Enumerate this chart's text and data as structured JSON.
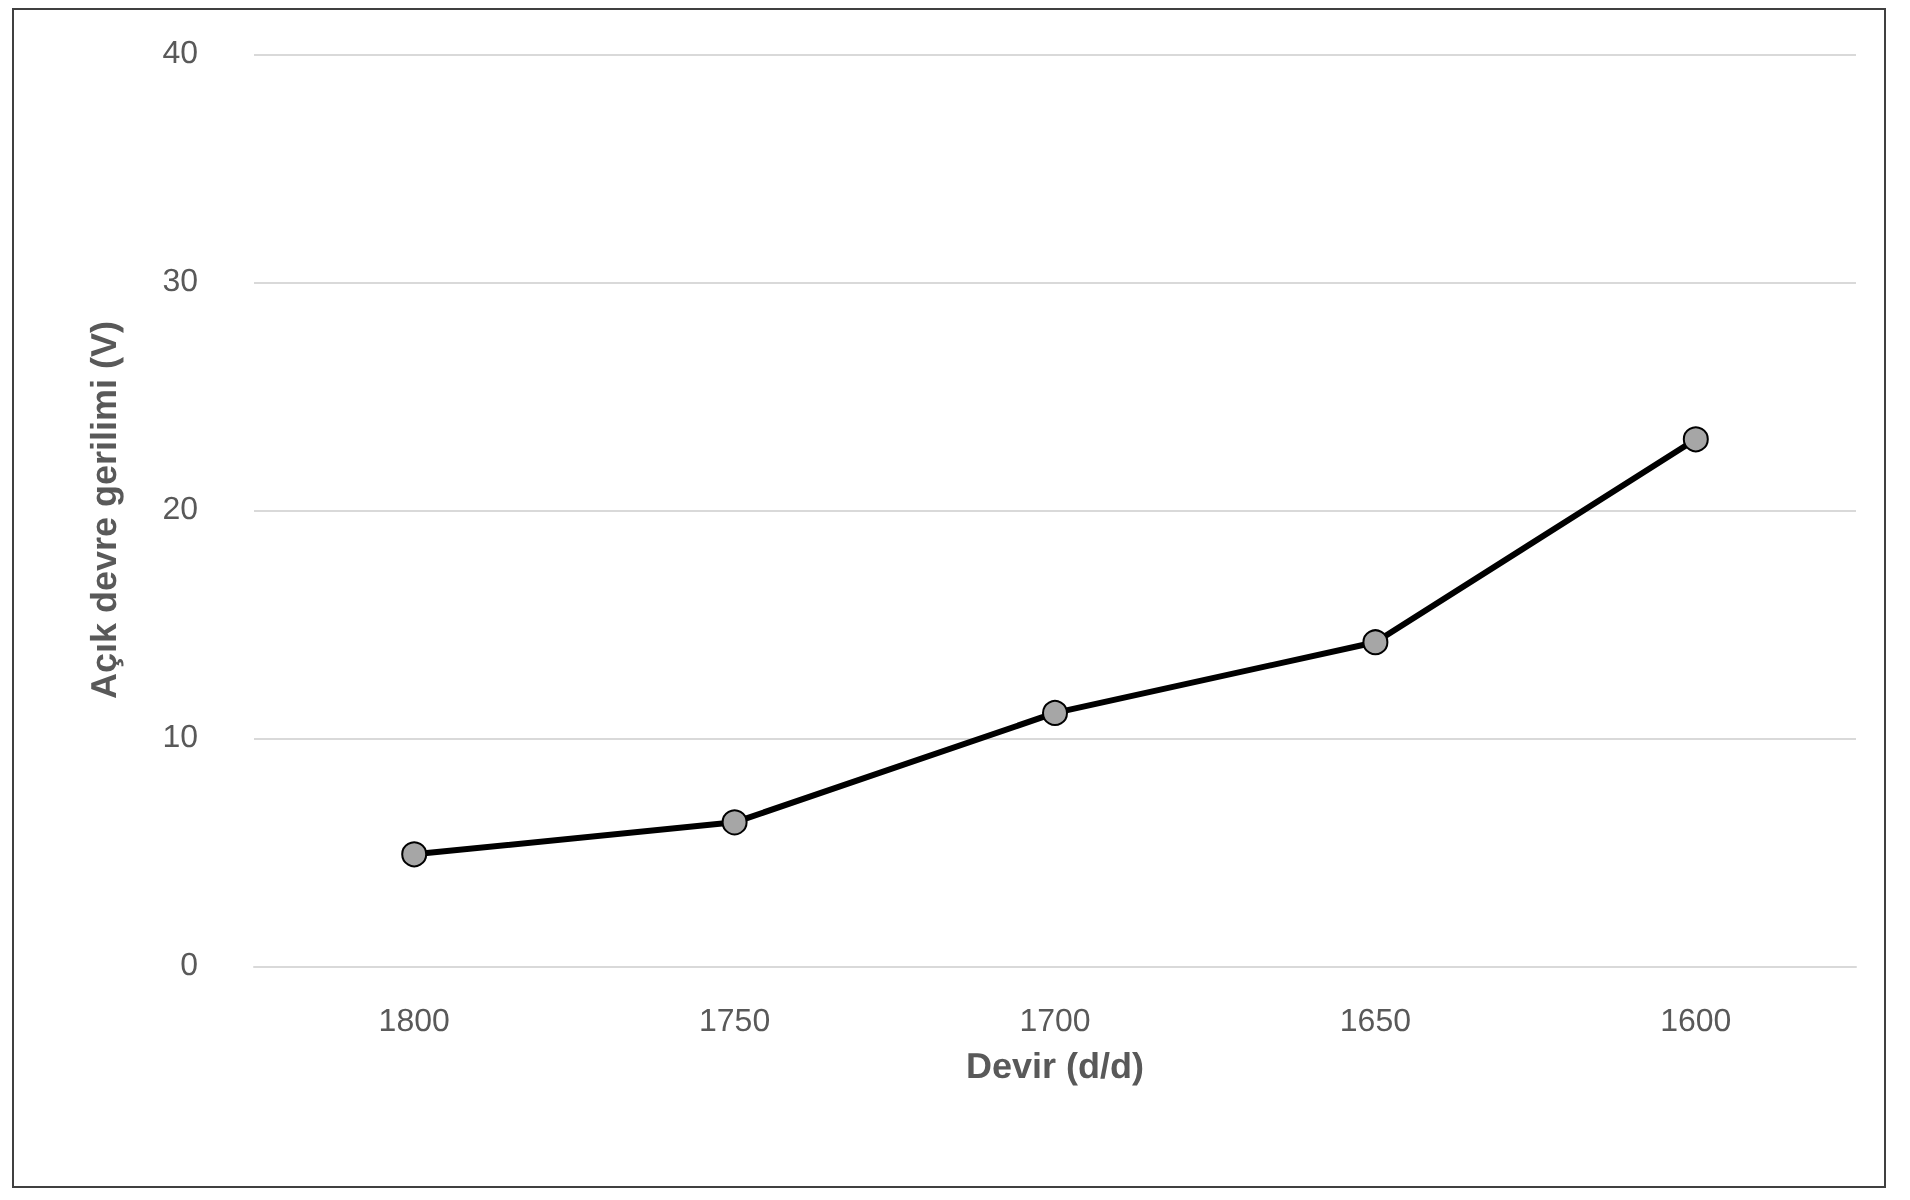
{
  "chart_data": {
    "type": "line",
    "xlabel": "Devir (d/d)",
    "ylabel": "Açık devre gerilimi (V)",
    "categories": [
      "1800",
      "1750",
      "1700",
      "1650",
      "1600"
    ],
    "series": [
      {
        "color": "#000000",
        "values": [
          4.9,
          6.3,
          11.1,
          14.2,
          23.1
        ]
      }
    ],
    "ylim": [
      0,
      40
    ],
    "yticks": [
      0,
      10,
      20,
      30,
      40
    ],
    "grid": "y",
    "marker": "circle",
    "line_style": "solid"
  }
}
